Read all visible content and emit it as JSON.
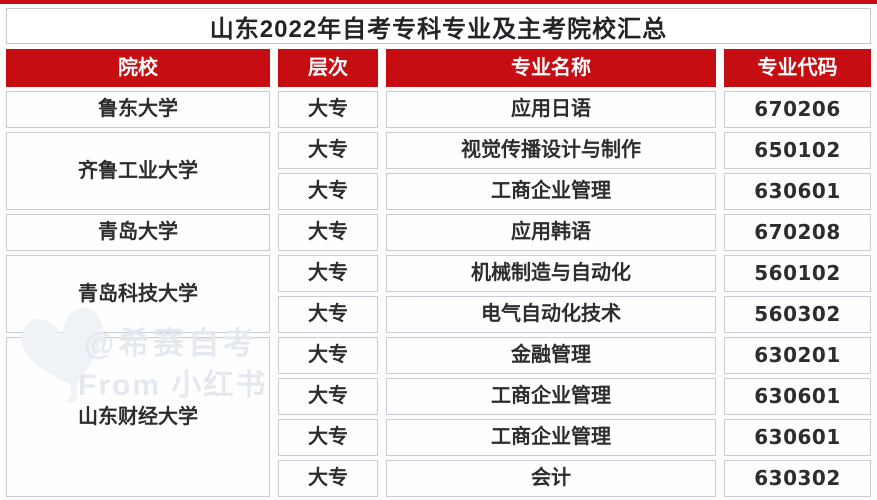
{
  "page": {
    "title": "山东2022年自考专科专业及主考院校汇总"
  },
  "table": {
    "headers": [
      "院校",
      "层次",
      "专业名称",
      "专业代码"
    ],
    "groups": [
      {
        "school": "鲁东大学",
        "rows": [
          {
            "level": "大专",
            "major": "应用日语",
            "code": "670206"
          }
        ]
      },
      {
        "school": "齐鲁工业大学",
        "rows": [
          {
            "level": "大专",
            "major": "视觉传播设计与制作",
            "code": "650102"
          },
          {
            "level": "大专",
            "major": "工商企业管理",
            "code": "630601"
          }
        ]
      },
      {
        "school": "青岛大学",
        "rows": [
          {
            "level": "大专",
            "major": "应用韩语",
            "code": "670208"
          }
        ]
      },
      {
        "school": "青岛科技大学",
        "rows": [
          {
            "level": "大专",
            "major": "机械制造与自动化",
            "code": "560102"
          },
          {
            "level": "大专",
            "major": "电气自动化技术",
            "code": "560302"
          }
        ]
      },
      {
        "school": "山东财经大学",
        "rows": [
          {
            "level": "大专",
            "major": "金融管理",
            "code": "630201"
          },
          {
            "level": "大专",
            "major": "工商企业管理",
            "code": "630601"
          },
          {
            "level": "大专",
            "major": "工商企业管理",
            "code": "630601"
          },
          {
            "level": "大专",
            "major": "会计",
            "code": "630302"
          }
        ]
      }
    ]
  },
  "watermark": {
    "icon": "heart-icon",
    "line1": "@希赛自考",
    "line2": "From 小红书"
  },
  "colors": {
    "accent_red": "#c50d12",
    "cell_border": "#c9ccd4",
    "text": "#2d2d2e",
    "header_text": "#ffffff",
    "watermark_text": "#e4e8ef"
  }
}
